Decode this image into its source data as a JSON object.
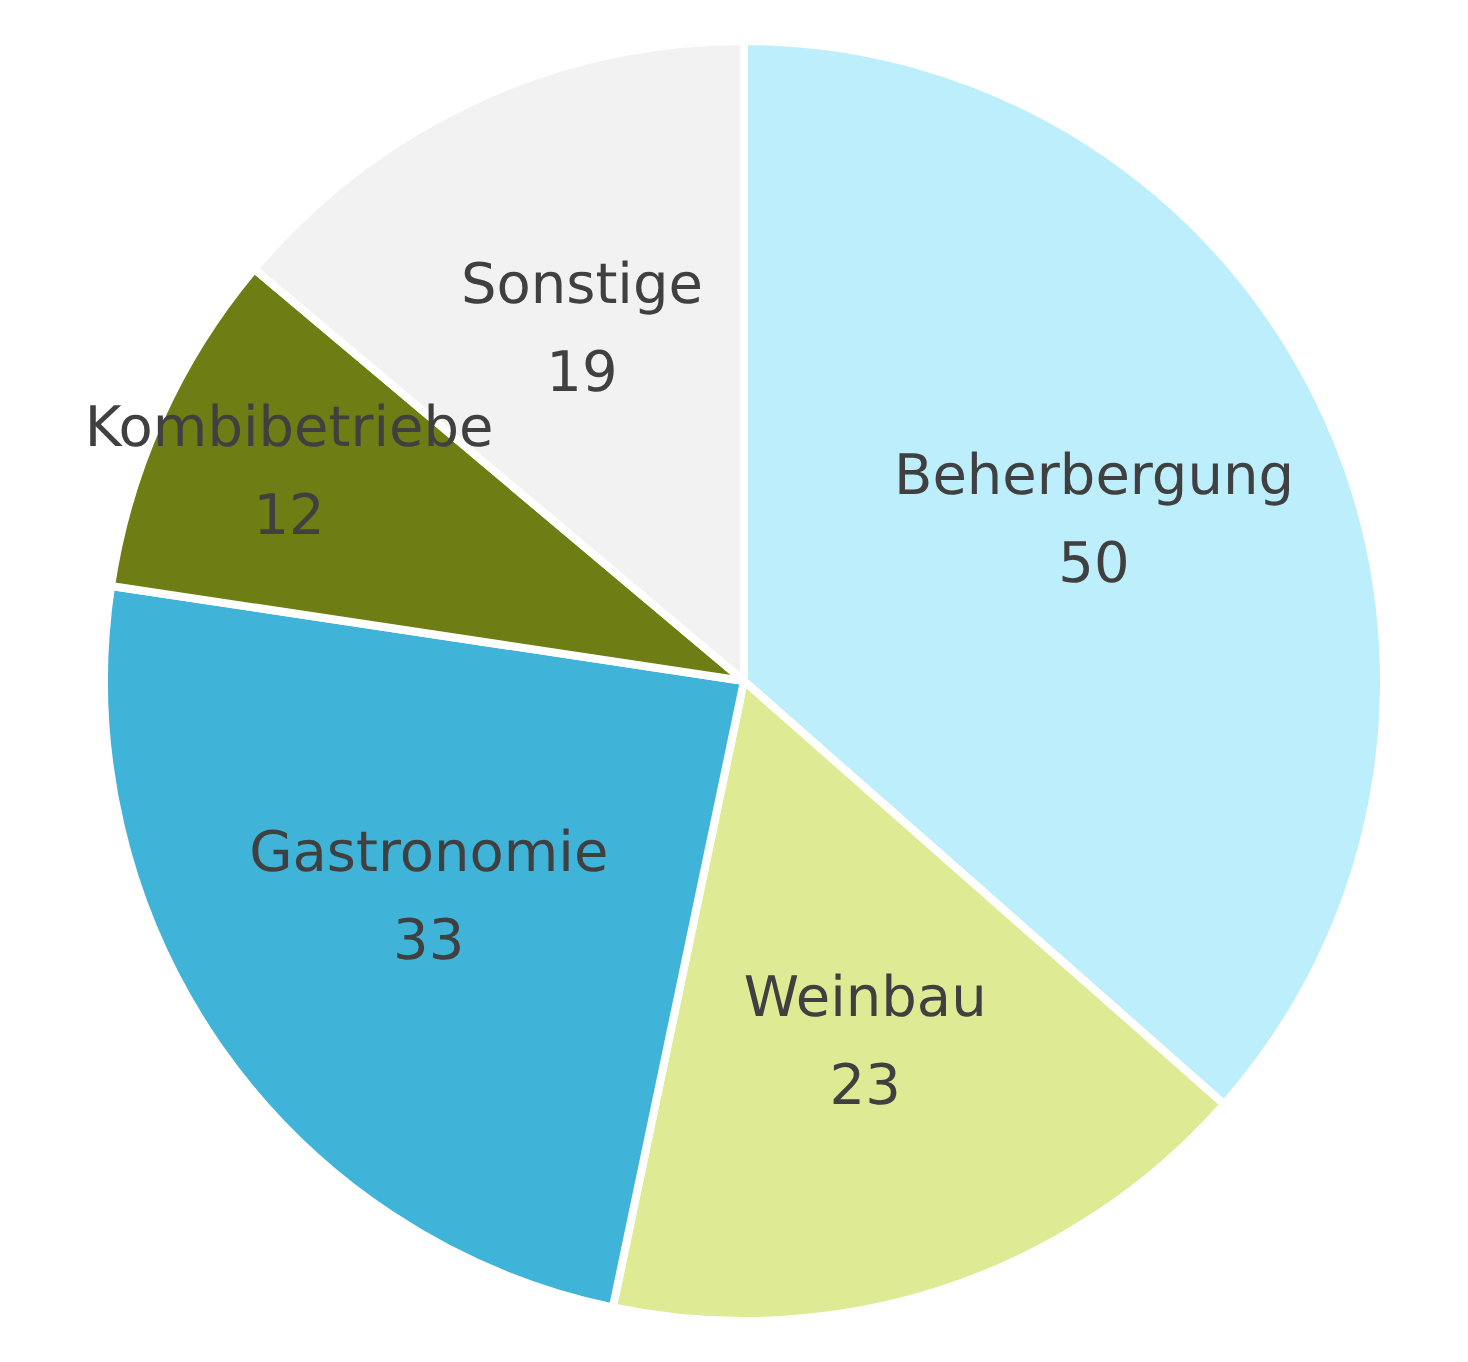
{
  "chart_data": {
    "type": "pie",
    "categories": [
      "Beherbergung",
      "Weinbau",
      "Gastronomie",
      "Kombibetriebe",
      "Sonstige"
    ],
    "values": [
      50,
      23,
      33,
      12,
      19
    ],
    "colors": [
      "#bdeefc",
      "#deeb94",
      "#40b4d8",
      "#6e7d14",
      "#f2f2f2"
    ],
    "data_labels": true,
    "legend": false
  }
}
